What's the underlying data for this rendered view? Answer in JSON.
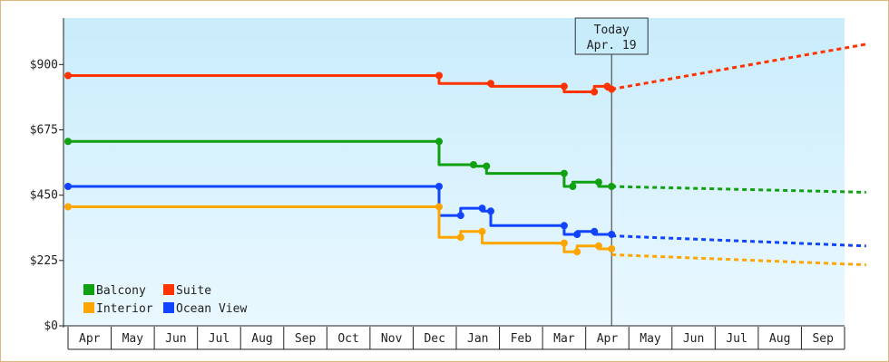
{
  "chart_data": {
    "type": "line",
    "x_months": [
      "Apr",
      "May",
      "Jun",
      "Jul",
      "Aug",
      "Sep",
      "Oct",
      "Nov",
      "Dec",
      "Jan",
      "Feb",
      "Mar",
      "Apr",
      "May",
      "Jun",
      "Jul",
      "Aug",
      "Sep"
    ],
    "y_ticks": [
      {
        "value": 0,
        "label": "$0"
      },
      {
        "value": 225,
        "label": "$225"
      },
      {
        "value": 450,
        "label": "$450"
      },
      {
        "value": 675,
        "label": "$675"
      },
      {
        "value": 900,
        "label": "$900"
      }
    ],
    "ylim": [
      0,
      1060
    ],
    "today": {
      "line1": "Today",
      "line2": "Apr. 19",
      "x": 12.6
    },
    "grid": false,
    "legend_position": "bottom-left",
    "series": [
      {
        "name": "Suite",
        "color": "#ff3300",
        "points": [
          [
            0,
            862
          ],
          [
            8.6,
            862
          ],
          [
            8.6,
            835
          ],
          [
            9.8,
            835
          ],
          [
            9.8,
            825
          ],
          [
            11.5,
            825
          ],
          [
            11.5,
            806
          ],
          [
            12.2,
            806
          ],
          [
            12.2,
            825
          ],
          [
            12.5,
            825
          ],
          [
            12.5,
            815
          ],
          [
            12.6,
            815
          ]
        ],
        "forecast": [
          [
            12.6,
            815
          ],
          [
            18.5,
            970
          ]
        ]
      },
      {
        "name": "Balcony",
        "color": "#11a011",
        "points": [
          [
            0,
            635
          ],
          [
            8.6,
            635
          ],
          [
            8.6,
            555
          ],
          [
            9.4,
            555
          ],
          [
            9.4,
            550
          ],
          [
            9.7,
            550
          ],
          [
            9.7,
            525
          ],
          [
            11.5,
            525
          ],
          [
            11.5,
            480
          ],
          [
            11.7,
            480
          ],
          [
            11.7,
            495
          ],
          [
            12.3,
            495
          ],
          [
            12.3,
            480
          ],
          [
            12.6,
            480
          ]
        ],
        "forecast": [
          [
            12.6,
            480
          ],
          [
            18.5,
            460
          ]
        ]
      },
      {
        "name": "Ocean View",
        "color": "#1144ff",
        "points": [
          [
            0,
            480
          ],
          [
            8.6,
            480
          ],
          [
            8.6,
            380
          ],
          [
            9.1,
            380
          ],
          [
            9.1,
            405
          ],
          [
            9.6,
            405
          ],
          [
            9.6,
            395
          ],
          [
            9.8,
            395
          ],
          [
            9.8,
            345
          ],
          [
            11.5,
            345
          ],
          [
            11.5,
            315
          ],
          [
            11.8,
            315
          ],
          [
            11.8,
            325
          ],
          [
            12.2,
            325
          ],
          [
            12.2,
            315
          ],
          [
            12.6,
            315
          ]
        ],
        "forecast": [
          [
            12.6,
            310
          ],
          [
            18.5,
            275
          ]
        ]
      },
      {
        "name": "Interior",
        "color": "#ffa500",
        "points": [
          [
            0,
            410
          ],
          [
            8.6,
            410
          ],
          [
            8.6,
            305
          ],
          [
            9.1,
            305
          ],
          [
            9.1,
            325
          ],
          [
            9.6,
            325
          ],
          [
            9.6,
            285
          ],
          [
            11.5,
            285
          ],
          [
            11.5,
            255
          ],
          [
            11.8,
            255
          ],
          [
            11.8,
            275
          ],
          [
            12.3,
            275
          ],
          [
            12.3,
            265
          ],
          [
            12.6,
            265
          ]
        ],
        "forecast": [
          [
            12.6,
            245
          ],
          [
            18.5,
            210
          ]
        ]
      }
    ],
    "legend": [
      {
        "name": "Balcony",
        "color": "#11a011"
      },
      {
        "name": "Suite",
        "color": "#ff3300"
      },
      {
        "name": "Interior",
        "color": "#ffa500"
      },
      {
        "name": "Ocean View",
        "color": "#1144ff"
      }
    ]
  }
}
